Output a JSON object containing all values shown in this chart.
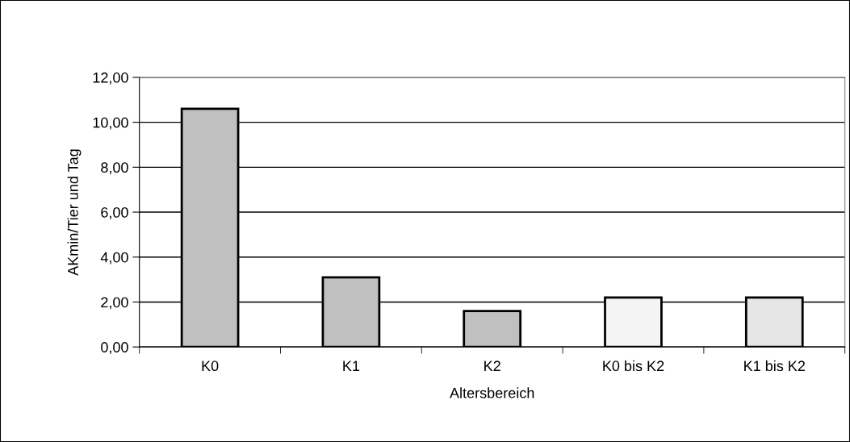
{
  "chart_data": {
    "type": "bar",
    "xlabel": "Altersbereich",
    "ylabel": "AKmin/Tier und Tag",
    "categories": [
      "K0",
      "K1",
      "K2",
      "K0 bis K2",
      "K1 bis K2"
    ],
    "values": [
      10.6,
      3.1,
      1.6,
      2.2,
      2.2
    ],
    "colors": [
      "#c0c0c0",
      "#c0c0c0",
      "#c0c0c0",
      "#f4f4f4",
      "#e6e6e6"
    ],
    "ylim": [
      0,
      12
    ],
    "yticks": [
      {
        "value": 0,
        "label": "0,00"
      },
      {
        "value": 2,
        "label": "2,00"
      },
      {
        "value": 4,
        "label": "4,00"
      },
      {
        "value": 6,
        "label": "6,00"
      },
      {
        "value": 8,
        "label": "8,00"
      },
      {
        "value": 10,
        "label": "10,00"
      },
      {
        "value": 12,
        "label": "12,00"
      }
    ],
    "grid": "y",
    "legend": false
  }
}
